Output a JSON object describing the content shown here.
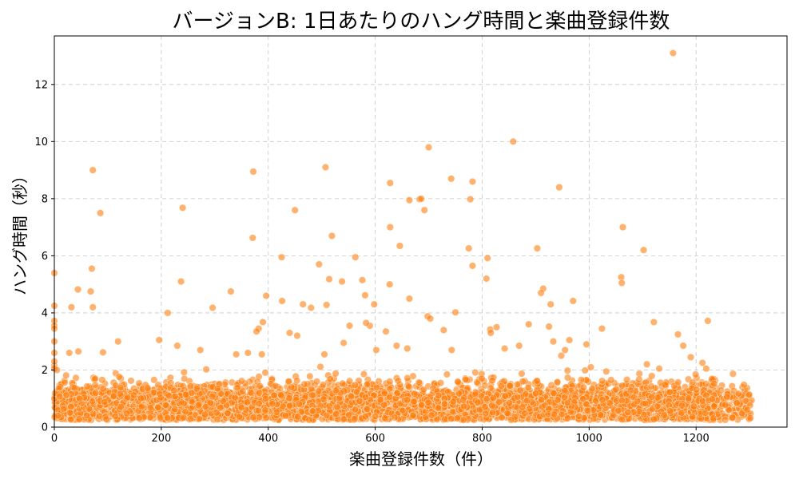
{
  "chart_data": {
    "type": "scatter",
    "title": "バージョンB: 1日あたりのハング時間と楽曲登録件数",
    "xlabel": "楽曲登録件数（件）",
    "ylabel": "ハング時間（秒）",
    "xlim": [
      0,
      1370
    ],
    "ylim": [
      0,
      13.7
    ],
    "xticks": [
      0,
      200,
      400,
      600,
      800,
      1000,
      1200
    ],
    "yticks": [
      0,
      2,
      4,
      6,
      8,
      10,
      12
    ],
    "grid": true,
    "color": "#ff7f0e",
    "outliers": [
      [
        1157,
        13.1
      ],
      [
        858,
        10.0
      ],
      [
        700,
        9.8
      ],
      [
        72,
        9.0
      ],
      [
        507,
        9.1
      ],
      [
        372,
        8.95
      ],
      [
        742,
        8.7
      ],
      [
        782,
        8.6
      ],
      [
        628,
        8.55
      ],
      [
        944,
        8.4
      ],
      [
        683,
        7.98
      ],
      [
        686,
        8.0
      ],
      [
        664,
        7.95
      ],
      [
        778,
        7.98
      ],
      [
        86,
        7.5
      ],
      [
        240,
        7.68
      ],
      [
        450,
        7.6
      ],
      [
        692,
        7.6
      ],
      [
        1063,
        7.0
      ],
      [
        628,
        7.0
      ],
      [
        903,
        6.26
      ],
      [
        775,
        6.26
      ],
      [
        519,
        6.7
      ],
      [
        646,
        6.35
      ],
      [
        1102,
        6.2
      ],
      [
        371,
        6.63
      ],
      [
        425,
        5.95
      ],
      [
        563,
        5.95
      ],
      [
        810,
        5.92
      ],
      [
        1060,
        5.25
      ],
      [
        1061,
        5.05
      ],
      [
        70,
        5.55
      ],
      [
        495,
        5.7
      ],
      [
        782,
        5.65
      ],
      [
        0,
        5.4
      ],
      [
        237,
        5.1
      ],
      [
        514,
        5.18
      ],
      [
        538,
        5.1
      ],
      [
        576,
        5.15
      ],
      [
        627,
        5.0
      ],
      [
        808,
        5.2
      ],
      [
        914,
        4.85
      ],
      [
        910,
        4.7
      ],
      [
        44,
        4.82
      ],
      [
        68,
        4.75
      ],
      [
        330,
        4.75
      ],
      [
        396,
        4.6
      ],
      [
        581,
        4.62
      ],
      [
        664,
        4.5
      ],
      [
        928,
        4.3
      ],
      [
        970,
        4.42
      ],
      [
        32,
        4.2
      ],
      [
        72,
        4.2
      ],
      [
        0,
        4.25
      ],
      [
        296,
        4.18
      ],
      [
        426,
        4.42
      ],
      [
        465,
        4.3
      ],
      [
        480,
        4.18
      ],
      [
        509,
        4.28
      ],
      [
        598,
        4.3
      ],
      [
        212,
        4.0
      ],
      [
        750,
        4.02
      ],
      [
        0,
        3.72
      ],
      [
        0,
        3.55
      ],
      [
        0,
        3.45
      ],
      [
        390,
        3.68
      ],
      [
        382,
        3.45
      ],
      [
        378,
        3.35
      ],
      [
        454,
        3.2
      ],
      [
        440,
        3.3
      ],
      [
        552,
        3.55
      ],
      [
        590,
        3.55
      ],
      [
        583,
        3.65
      ],
      [
        698,
        3.88
      ],
      [
        703,
        3.8
      ],
      [
        728,
        3.4
      ],
      [
        815,
        3.42
      ],
      [
        816,
        3.3
      ],
      [
        827,
        3.5
      ],
      [
        887,
        3.6
      ],
      [
        925,
        3.52
      ],
      [
        1024,
        3.45
      ],
      [
        1121,
        3.68
      ],
      [
        1222,
        3.72
      ],
      [
        1166,
        3.25
      ],
      [
        119,
        3.0
      ],
      [
        196,
        3.05
      ],
      [
        620,
        3.35
      ],
      [
        541,
        2.95
      ],
      [
        933,
        3.0
      ],
      [
        963,
        3.05
      ],
      [
        995,
        2.9
      ],
      [
        0,
        3.0
      ],
      [
        0,
        2.6
      ],
      [
        0,
        2.15
      ],
      [
        0,
        2.3
      ],
      [
        0,
        2.05
      ],
      [
        5,
        2.0
      ],
      [
        28,
        2.6
      ],
      [
        45,
        2.65
      ],
      [
        91,
        2.62
      ],
      [
        230,
        2.85
      ],
      [
        273,
        2.7
      ],
      [
        340,
        2.55
      ],
      [
        362,
        2.6
      ],
      [
        388,
        2.55
      ],
      [
        505,
        2.55
      ],
      [
        602,
        2.7
      ],
      [
        640,
        2.85
      ],
      [
        660,
        2.75
      ],
      [
        743,
        2.7
      ],
      [
        842,
        2.75
      ],
      [
        869,
        2.85
      ],
      [
        1176,
        2.85
      ],
      [
        1212,
        2.25
      ],
      [
        1219,
        2.05
      ],
      [
        1190,
        2.45
      ],
      [
        1108,
        2.2
      ],
      [
        1131,
        2.05
      ],
      [
        1003,
        2.1
      ],
      [
        1032,
        1.95
      ],
      [
        948,
        2.5
      ],
      [
        955,
        2.7
      ]
    ],
    "cluster": {
      "x_range": [
        0,
        1305
      ],
      "y_typical": [
        0.25,
        1.6
      ],
      "count": 5200
    }
  }
}
